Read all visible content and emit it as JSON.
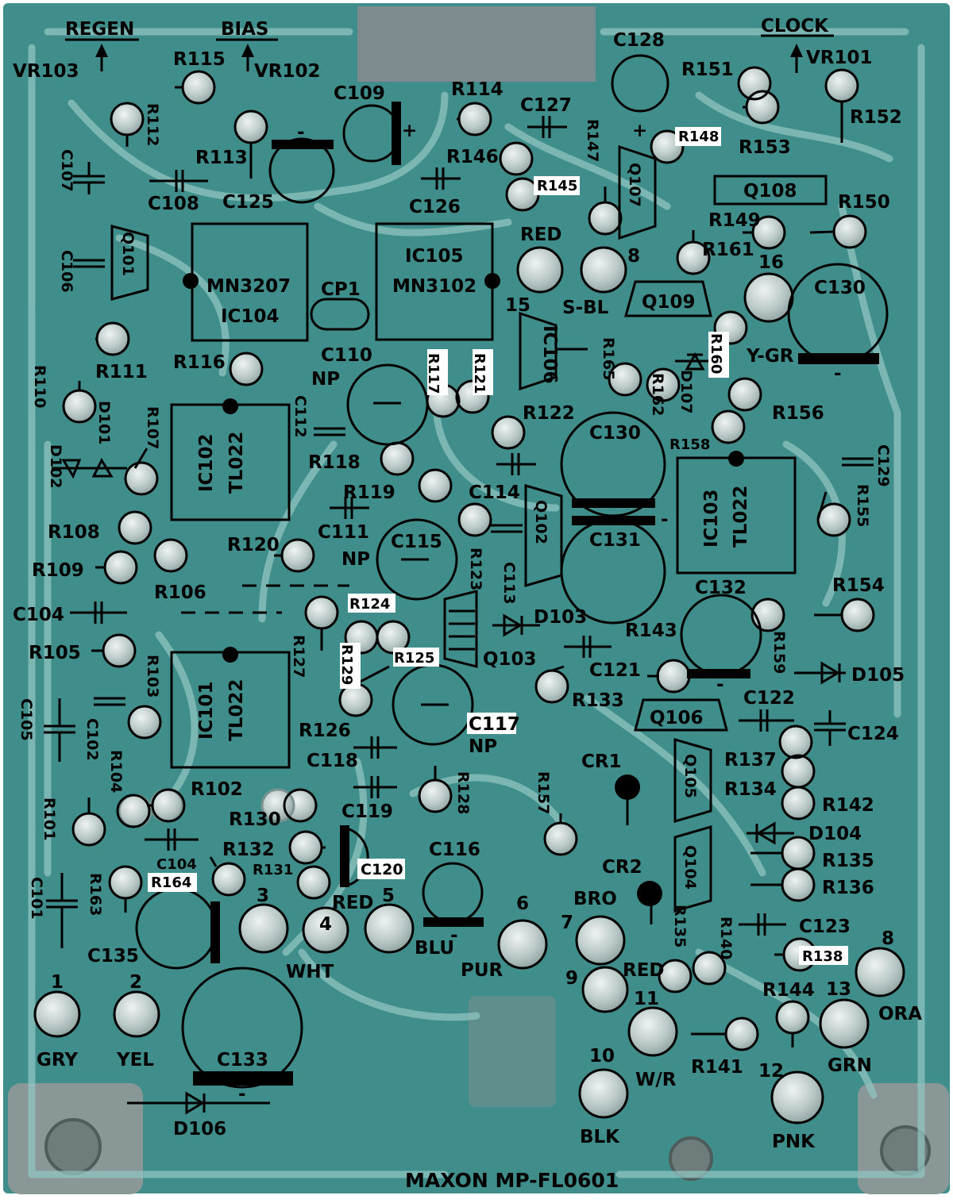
{
  "title": "MAXON MP-FL0601",
  "colors": {
    "board": "#3f8e8b",
    "board_edge": "#2a6461",
    "trace": "#8fc4c1",
    "solder": "#c7d5d3",
    "pad_ring": "#9eb3b1",
    "plastic": "#7e8b8e",
    "ink": "#000000",
    "tag_bg": "#ffffff"
  },
  "controls": [
    {
      "name": "REGEN",
      "trim": "VR103"
    },
    {
      "name": "BIAS",
      "trim": "VR102"
    },
    {
      "name": "CLOCK",
      "trim": "VR101"
    }
  ],
  "ics": [
    {
      "ref": "IC104",
      "part": "MN3207"
    },
    {
      "ref": "IC105",
      "part": "MN3102"
    },
    {
      "ref": "IC102",
      "part": "TL022"
    },
    {
      "ref": "IC101",
      "part": "TL022"
    },
    {
      "ref": "IC103",
      "part": "TL022"
    },
    {
      "ref": "IC106",
      "part": ""
    }
  ],
  "transistors": [
    "Q101",
    "Q102",
    "Q103",
    "Q104",
    "Q105",
    "Q106",
    "Q107",
    "Q108",
    "Q109"
  ],
  "diodes": [
    "D101",
    "D102",
    "D103",
    "D104",
    "D105",
    "D106",
    "D107"
  ],
  "capacitors": [
    "C101",
    "C102",
    "C104",
    "C104",
    "C105",
    "C106",
    "C107",
    "C108",
    "C109",
    "C110",
    "C111",
    "C112",
    "C113",
    "C114",
    "C115",
    "C116",
    "C117",
    "C118",
    "C119",
    "C120",
    "C121",
    "C122",
    "C123",
    "C124",
    "C125",
    "C126",
    "C127",
    "C128",
    "C129",
    "C130",
    "C130",
    "C131",
    "C132",
    "C133",
    "C135",
    "CP1"
  ],
  "resistors": [
    "R101",
    "R102",
    "R103",
    "R104",
    "R105",
    "R106",
    "R107",
    "R108",
    "R109",
    "R110",
    "R111",
    "R112",
    "R113",
    "R114",
    "R115",
    "R116",
    "R117",
    "R118",
    "R119",
    "R120",
    "R121",
    "R122",
    "R123",
    "R124",
    "R125",
    "R126",
    "R127",
    "R128",
    "R129",
    "R130",
    "R131",
    "R132",
    "R133",
    "R134",
    "R135",
    "R135",
    "R136",
    "R137",
    "R138",
    "R140",
    "R141",
    "R142",
    "R143",
    "R144",
    "R145",
    "R146",
    "R147",
    "R148",
    "R149",
    "R150",
    "R151",
    "R152",
    "R153",
    "R154",
    "R155",
    "R156",
    "R157",
    "R158",
    "R159",
    "R160",
    "R161",
    "R162",
    "R163",
    "R164",
    "R165"
  ],
  "markers": [
    "CR1",
    "CR2",
    "NP",
    "NP",
    "NP",
    "+",
    "+",
    "-",
    "-",
    "-",
    "-",
    "-",
    "-"
  ],
  "wire_pads": [
    {
      "n": "1",
      "c": "GRY"
    },
    {
      "n": "2",
      "c": "YEL"
    },
    {
      "n": "3",
      "c": "WHT"
    },
    {
      "n": "4",
      "c": ""
    },
    {
      "n": "5",
      "c": "BLU"
    },
    {
      "n": "6",
      "c": "PUR"
    },
    {
      "n": "7",
      "c": "BRO"
    },
    {
      "n": "8",
      "c": "ORA"
    },
    {
      "n": "9",
      "c": "RED"
    },
    {
      "n": "10",
      "c": "BLK"
    },
    {
      "n": "11",
      "c": "W/R"
    },
    {
      "n": "12",
      "c": "PNK"
    },
    {
      "n": "13",
      "c": "GRN"
    }
  ],
  "extra_pads": [
    {
      "n": "",
      "c": "RED"
    },
    {
      "n": "8",
      "c": "S-BL"
    },
    {
      "n": "15",
      "c": ""
    },
    {
      "n": "16",
      "c": "Y-GR"
    },
    {
      "n": "",
      "c": "RED"
    }
  ]
}
